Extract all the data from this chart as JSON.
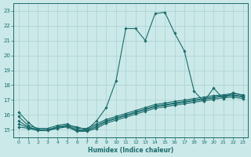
{
  "xlabel": "Humidex (Indice chaleur)",
  "xlim": [
    -0.5,
    23.5
  ],
  "ylim": [
    14.5,
    23.5
  ],
  "yticks": [
    15,
    16,
    17,
    18,
    19,
    20,
    21,
    22,
    23
  ],
  "xticks": [
    0,
    1,
    2,
    3,
    4,
    5,
    6,
    7,
    8,
    9,
    10,
    11,
    12,
    13,
    14,
    15,
    16,
    17,
    18,
    19,
    20,
    21,
    22,
    23
  ],
  "bg_color": "#cce9e9",
  "grid_color": "#aad0d0",
  "line_color": "#1a6b6b",
  "lines": [
    {
      "x": [
        0,
        1,
        2,
        3,
        4,
        5,
        6,
        7,
        8,
        9,
        10,
        11,
        12,
        13,
        14,
        15,
        16,
        17,
        18,
        19,
        20,
        21,
        22,
        23
      ],
      "y": [
        16.2,
        15.5,
        15.0,
        15.0,
        15.2,
        15.3,
        15.2,
        15.0,
        15.6,
        16.5,
        18.3,
        21.8,
        21.8,
        21.0,
        22.8,
        22.9,
        21.5,
        20.3,
        17.6,
        16.9,
        17.8,
        17.1,
        17.5,
        17.3
      ]
    },
    {
      "x": [
        0,
        1,
        2,
        3,
        4,
        5,
        6,
        7,
        8,
        9,
        10,
        11,
        12,
        13,
        14,
        15,
        16,
        17,
        18,
        19,
        20,
        21,
        22,
        23
      ],
      "y": [
        15.9,
        15.3,
        15.1,
        15.1,
        15.3,
        15.4,
        15.1,
        15.1,
        15.4,
        15.7,
        15.9,
        16.1,
        16.3,
        16.5,
        16.7,
        16.8,
        16.9,
        17.0,
        17.1,
        17.2,
        17.3,
        17.35,
        17.45,
        17.35
      ]
    },
    {
      "x": [
        0,
        1,
        2,
        3,
        4,
        5,
        6,
        7,
        8,
        9,
        10,
        11,
        12,
        13,
        14,
        15,
        16,
        17,
        18,
        19,
        20,
        21,
        22,
        23
      ],
      "y": [
        15.6,
        15.2,
        15.0,
        15.0,
        15.2,
        15.3,
        15.0,
        15.0,
        15.3,
        15.6,
        15.8,
        16.0,
        16.2,
        16.4,
        16.6,
        16.7,
        16.8,
        16.9,
        17.0,
        17.1,
        17.2,
        17.3,
        17.35,
        17.25
      ]
    },
    {
      "x": [
        0,
        1,
        2,
        3,
        4,
        5,
        6,
        7,
        8,
        9,
        10,
        11,
        12,
        13,
        14,
        15,
        16,
        17,
        18,
        19,
        20,
        21,
        22,
        23
      ],
      "y": [
        15.4,
        15.15,
        15.0,
        15.0,
        15.15,
        15.25,
        14.95,
        14.95,
        15.2,
        15.55,
        15.75,
        15.95,
        16.15,
        16.35,
        16.55,
        16.65,
        16.75,
        16.85,
        16.95,
        17.05,
        17.15,
        17.25,
        17.3,
        17.2
      ]
    },
    {
      "x": [
        0,
        1,
        2,
        3,
        4,
        5,
        6,
        7,
        8,
        9,
        10,
        11,
        12,
        13,
        14,
        15,
        16,
        17,
        18,
        19,
        20,
        21,
        22,
        23
      ],
      "y": [
        15.2,
        15.1,
        14.95,
        14.95,
        15.1,
        15.2,
        14.9,
        14.9,
        15.1,
        15.45,
        15.65,
        15.85,
        16.05,
        16.25,
        16.45,
        16.55,
        16.65,
        16.75,
        16.85,
        16.95,
        17.05,
        17.15,
        17.2,
        17.1
      ]
    }
  ]
}
